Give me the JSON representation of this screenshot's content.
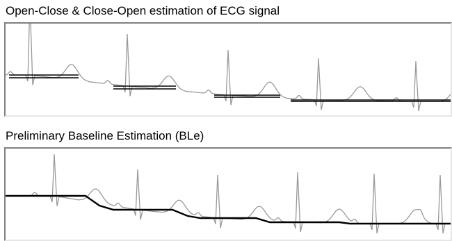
{
  "panels": {
    "top": {
      "title": "Open-Close & Close-Open estimation of ECG signal"
    },
    "bottom": {
      "title": "Preliminary Baseline Estimation (BLe)"
    }
  },
  "colors": {
    "ecg": "#999999",
    "estimate": "#000000",
    "frame_dark": "#808080",
    "frame_light": "#e6e6e6"
  },
  "chart_data": [
    {
      "type": "line",
      "title": "Open-Close & Close-Open estimation of ECG signal",
      "xlabel": "",
      "ylabel": "",
      "xlim": [
        0,
        640
      ],
      "ylim": [
        0,
        130
      ],
      "grid": false,
      "legend": "none",
      "beats": [
        {
          "x": 35,
          "base": 74,
          "r": 108,
          "t": 22
        },
        {
          "x": 175,
          "base": 90,
          "r": 75,
          "t": 20
        },
        {
          "x": 320,
          "base": 103,
          "r": 65,
          "t": 22
        },
        {
          "x": 450,
          "base": 110,
          "r": 60,
          "t": 20
        },
        {
          "x": 590,
          "base": 112,
          "r": 58,
          "t": 20
        }
      ],
      "series": [
        {
          "role": "signal",
          "x": [
            0,
            640
          ],
          "y": [
            74,
            112
          ]
        },
        {
          "role": "estimate-oc",
          "segments": [
            [
              [
                5,
                74
              ],
              [
                105,
                74
              ]
            ],
            [
              [
                155,
                90
              ],
              [
                245,
                90
              ]
            ],
            [
              [
                300,
                103
              ],
              [
                395,
                103
              ]
            ],
            [
              [
                410,
                110
              ],
              [
                640,
                110
              ]
            ]
          ]
        },
        {
          "role": "estimate-co",
          "segments": [
            [
              [
                5,
                78
              ],
              [
                105,
                78
              ]
            ],
            [
              [
                155,
                94
              ],
              [
                245,
                94
              ]
            ],
            [
              [
                300,
                106
              ],
              [
                395,
                106
              ]
            ],
            [
              [
                410,
                112
              ],
              [
                640,
                112
              ]
            ]
          ]
        }
      ]
    },
    {
      "type": "line",
      "title": "Preliminary Baseline Estimation (BLe)",
      "xlabel": "",
      "ylabel": "",
      "xlim": [
        0,
        640
      ],
      "ylim": [
        0,
        130
      ],
      "grid": false,
      "legend": "none",
      "beats": [
        {
          "x": 70,
          "base": 68,
          "r": 60,
          "t": 20
        },
        {
          "x": 190,
          "base": 88,
          "r": 58,
          "t": 20
        },
        {
          "x": 305,
          "base": 100,
          "r": 62,
          "t": 20
        },
        {
          "x": 420,
          "base": 106,
          "r": 72,
          "t": 20
        },
        {
          "x": 530,
          "base": 108,
          "r": 72,
          "t": 20
        },
        {
          "x": 625,
          "base": 108,
          "r": 70,
          "t": 18
        }
      ],
      "series": [
        {
          "role": "signal",
          "x": [
            0,
            640
          ],
          "y": [
            68,
            108
          ]
        },
        {
          "role": "estimate",
          "points": [
            [
              0,
              68
            ],
            [
              115,
              68
            ],
            [
              135,
              82
            ],
            [
              155,
              88
            ],
            [
              240,
              88
            ],
            [
              262,
              97
            ],
            [
              280,
              100
            ],
            [
              360,
              100
            ],
            [
              380,
              106
            ],
            [
              480,
              106
            ],
            [
              495,
              108
            ],
            [
              640,
              108
            ]
          ]
        }
      ]
    }
  ]
}
